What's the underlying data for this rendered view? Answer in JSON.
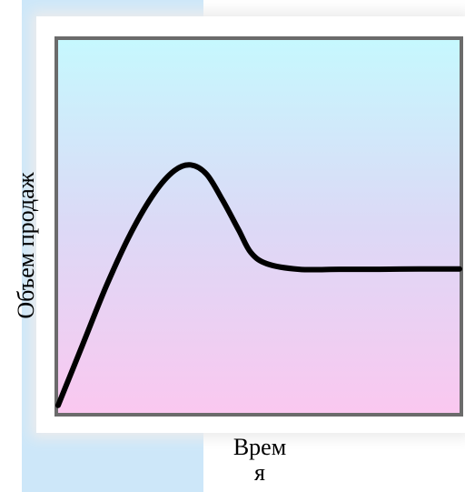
{
  "labels": {
    "y_axis": "Объем продаж",
    "x_axis_line1": "Врем",
    "x_axis_line2": "я"
  },
  "colors": {
    "curve": "#000000",
    "plot_border": "#6b6b6b",
    "gradient_top": "#c6f8fe",
    "gradient_bottom": "#fac8f0",
    "side_strip": "#cde7f9"
  },
  "chart_data": {
    "type": "line",
    "title": "",
    "xlabel": "Время",
    "ylabel": "Объем продаж",
    "xlim": [
      0,
      1
    ],
    "ylim": [
      0,
      1
    ],
    "grid": false,
    "legend": "none",
    "series": [
      {
        "values": [
          [
            0.0,
            0.02
          ],
          [
            0.06,
            0.18
          ],
          [
            0.12,
            0.34
          ],
          [
            0.18,
            0.48
          ],
          [
            0.24,
            0.59
          ],
          [
            0.29,
            0.65
          ],
          [
            0.33,
            0.665
          ],
          [
            0.37,
            0.64
          ],
          [
            0.41,
            0.57
          ],
          [
            0.45,
            0.49
          ],
          [
            0.48,
            0.43
          ],
          [
            0.52,
            0.4
          ],
          [
            0.6,
            0.385
          ],
          [
            0.7,
            0.385
          ],
          [
            0.8,
            0.385
          ],
          [
            0.9,
            0.386
          ],
          [
            1.0,
            0.386
          ]
        ]
      }
    ]
  }
}
